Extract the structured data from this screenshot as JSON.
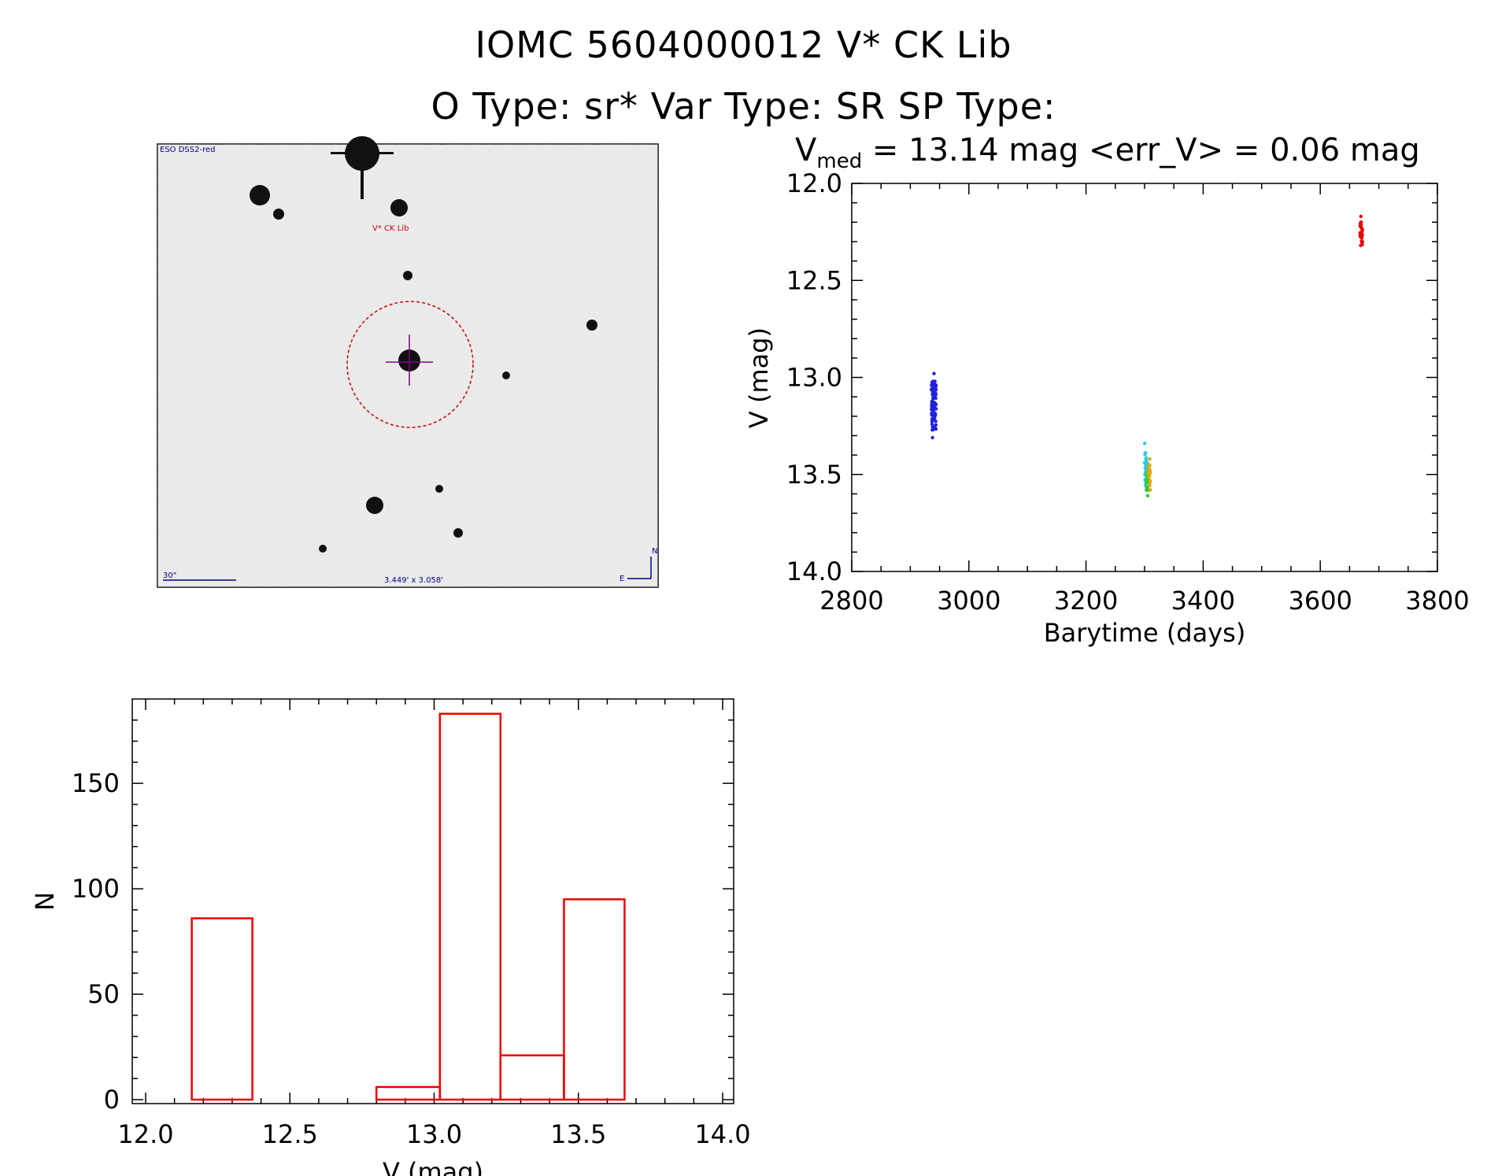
{
  "header": {
    "line1": "IOMC 5604000012    V* CK Lib",
    "line2": "O Type: sr*  Var Type: SR  SP Type:"
  },
  "finder_image": {
    "survey_label": "ESO DSS2-red",
    "object_label": "V* CK Lib",
    "scale_label": "30\"",
    "fov_label": "3.449' x 3.058'",
    "north_label": "N",
    "east_label": "E"
  },
  "chart_data": [
    {
      "type": "scatter",
      "title_prefix": "V",
      "title_sub": "med",
      "title_rest": " = 13.14 mag <err_V> = 0.06 mag",
      "xlabel": "Barytime (days)",
      "ylabel": "V (mag)",
      "xlim": [
        2800,
        3800
      ],
      "ylim": [
        14.0,
        12.0
      ],
      "y_inverted": true,
      "xticks": [
        2800,
        3000,
        3200,
        3400,
        3600,
        3800
      ],
      "yticks": [
        "12.0",
        "12.5",
        "13.0",
        "13.5",
        "14.0"
      ],
      "series": [
        {
          "color": "#2222dd",
          "x_center": 2940,
          "x_spread": 4,
          "y_min": 12.98,
          "y_max": 13.31,
          "y_center": 13.15,
          "n": 90
        },
        {
          "color": "#22ccee",
          "x_center": 3302,
          "x_spread": 2,
          "y_min": 13.34,
          "y_max": 13.56,
          "y_center": 13.47,
          "n": 25
        },
        {
          "color": "#33cc33",
          "x_center": 3305,
          "x_spread": 2,
          "y_min": 13.48,
          "y_max": 13.61,
          "y_center": 13.54,
          "n": 15
        },
        {
          "color": "#ddaa00",
          "x_center": 3308,
          "x_spread": 2,
          "y_min": 13.42,
          "y_max": 13.58,
          "y_center": 13.5,
          "n": 20
        },
        {
          "color": "#ee0000",
          "x_center": 3670,
          "x_spread": 2,
          "y_min": 12.17,
          "y_max": 12.32,
          "y_center": 12.26,
          "n": 40
        }
      ]
    },
    {
      "type": "bar",
      "xlabel": "V (mag)",
      "ylabel": "N",
      "xlim": [
        12.0,
        14.0
      ],
      "ylim": [
        0,
        190
      ],
      "xticks": [
        "12.0",
        "12.5",
        "13.0",
        "13.5",
        "14.0"
      ],
      "yticks": [
        0,
        50,
        100,
        150
      ],
      "bar_color": "#ee0000",
      "bins": [
        {
          "x0": 12.16,
          "x1": 12.37,
          "value": 86
        },
        {
          "x0": 12.37,
          "x1": 12.59,
          "value": 0
        },
        {
          "x0": 12.59,
          "x1": 12.8,
          "value": 0
        },
        {
          "x0": 12.8,
          "x1": 13.02,
          "value": 6
        },
        {
          "x0": 13.02,
          "x1": 13.23,
          "value": 183
        },
        {
          "x0": 13.23,
          "x1": 13.45,
          "value": 21
        },
        {
          "x0": 13.45,
          "x1": 13.66,
          "value": 95
        }
      ]
    }
  ]
}
